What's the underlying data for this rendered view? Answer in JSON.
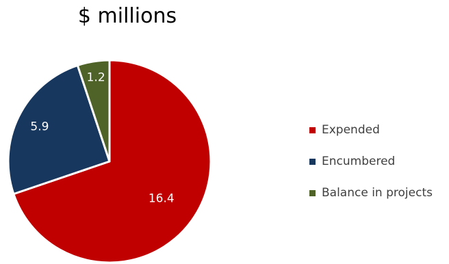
{
  "chart_data": {
    "type": "pie",
    "title": "$ millions",
    "slices": [
      {
        "label": "Expended",
        "value": 16.4,
        "value_label": "16.4",
        "color": "#C00000"
      },
      {
        "label": "Encumbered",
        "value": 5.9,
        "value_label": "5.9",
        "color": "#17375E"
      },
      {
        "label": "Balance in projects",
        "value": 1.2,
        "value_label": "1.2",
        "color": "#4F6228"
      }
    ],
    "legend_placement": "right",
    "slice_border_color": "#FFFFFF"
  }
}
